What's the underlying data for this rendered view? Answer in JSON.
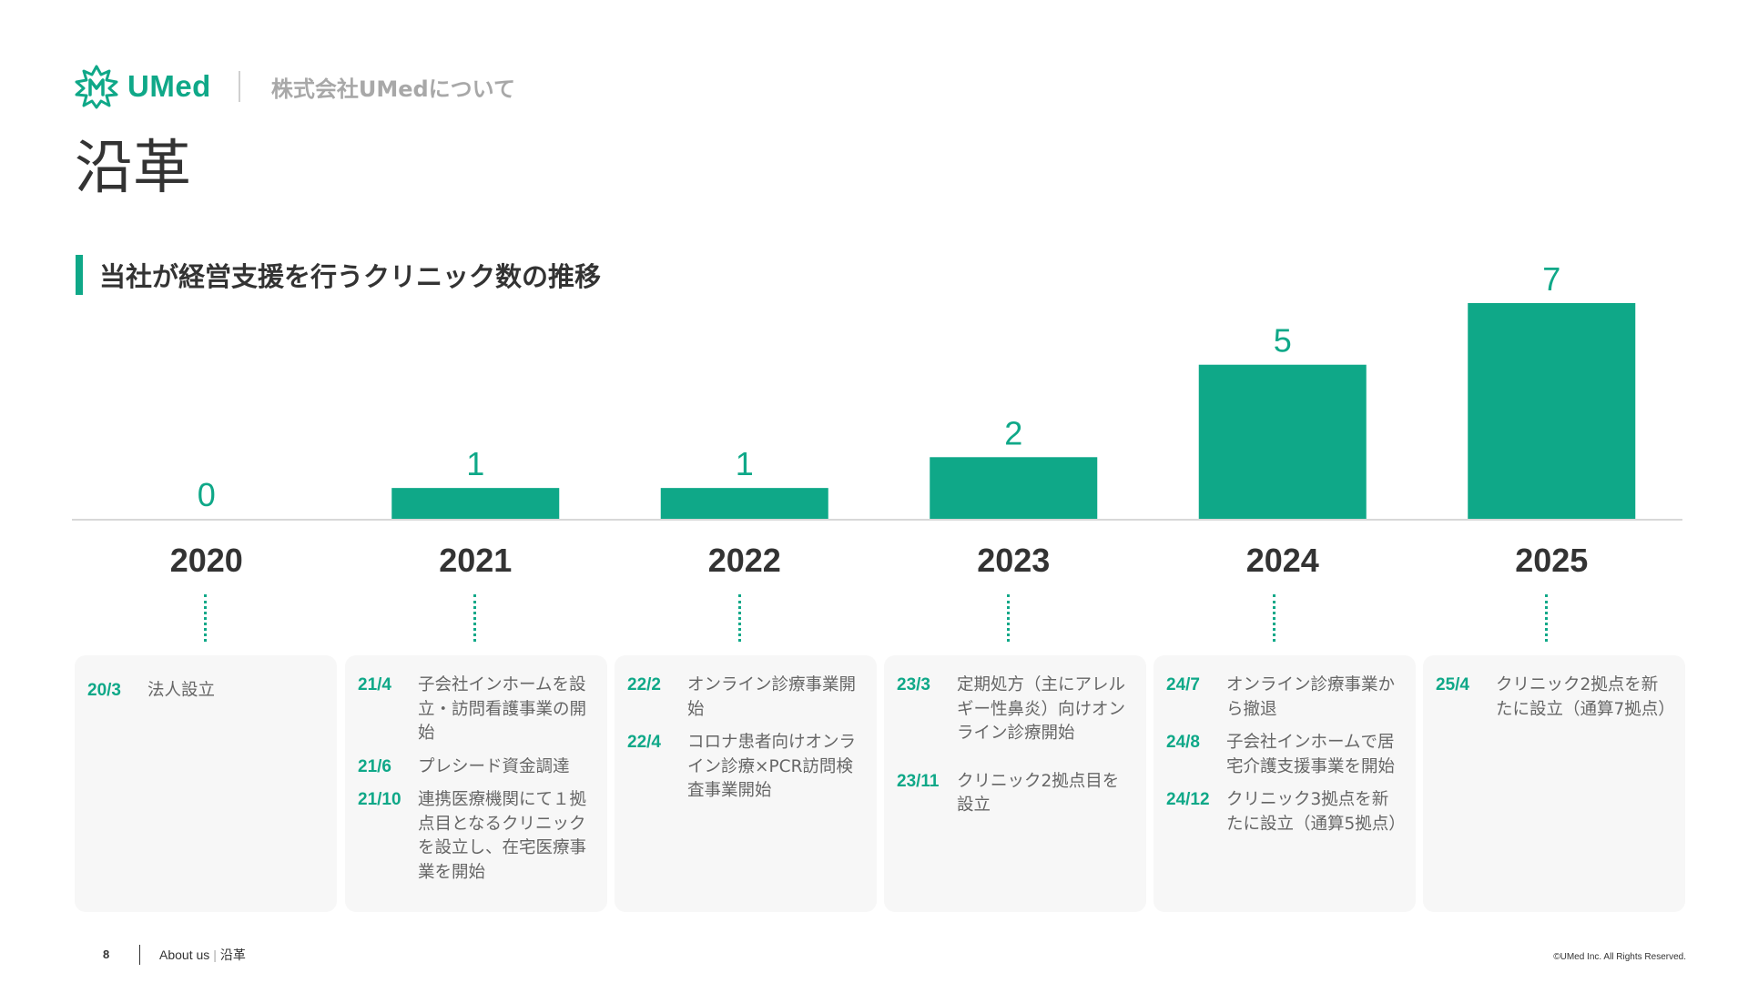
{
  "header": {
    "brand_name": "UMed",
    "subtitle": "株式会社UMedについて"
  },
  "page_title": "沿革",
  "section_heading": "当社が経営支援を行うクリニック数の推移",
  "colors": {
    "accent": "#0fa888",
    "text": "#333333",
    "muted": "#a8a8a8",
    "card_bg": "#f7f7f7"
  },
  "chart_data": {
    "type": "bar",
    "categories": [
      "2020",
      "2021",
      "2022",
      "2023",
      "2024",
      "2025"
    ],
    "values": [
      0,
      1,
      1,
      2,
      5,
      7
    ],
    "data_labels": [
      "0",
      "1",
      "1",
      "2",
      "5",
      "7"
    ],
    "title": "当社が経営支援を行うクリニック数の推移",
    "ylim": [
      0,
      7
    ],
    "grid": false,
    "legend": "none",
    "color": "#0fa888"
  },
  "timeline": [
    {
      "year": "2020",
      "events": [
        {
          "date": "20/3",
          "text": "法人設立"
        }
      ]
    },
    {
      "year": "2021",
      "events": [
        {
          "date": "21/4",
          "text": "子会社インホームを設立・訪問看護事業の開始"
        },
        {
          "date": "21/6",
          "text": "プレシード資金調達"
        },
        {
          "date": "21/10",
          "text": "連携医療機関にて１拠点目となるクリニックを設立し、在宅医療事業を開始"
        }
      ]
    },
    {
      "year": "2022",
      "events": [
        {
          "date": "22/2",
          "text": "オンライン診療事業開始"
        },
        {
          "date": "22/4",
          "text": "コロナ患者向けオンライン診療×PCR訪問検査事業開始"
        }
      ]
    },
    {
      "year": "2023",
      "events": [
        {
          "date": "23/3",
          "text": "定期処方（主にアレルギー性鼻炎）向けオンライン診療開始"
        },
        {
          "date": "23/11",
          "text": "クリニック2拠点目を設立"
        }
      ]
    },
    {
      "year": "2024",
      "events": [
        {
          "date": "24/7",
          "text": "オンライン診療事業から撤退"
        },
        {
          "date": "24/8",
          "text": "子会社インホームで居宅介護支援事業を開始"
        },
        {
          "date": "24/12",
          "text": "クリニック3拠点を新たに設立（通算5拠点）"
        }
      ]
    },
    {
      "year": "2025",
      "events": [
        {
          "date": "25/4",
          "text": "クリニック2拠点を新たに設立（通算7拠点）"
        }
      ]
    }
  ],
  "footer": {
    "page_number": "8",
    "section_en": "About us",
    "section_jp": "沿革",
    "copyright": "©UMed Inc. All Rights Reserved."
  }
}
